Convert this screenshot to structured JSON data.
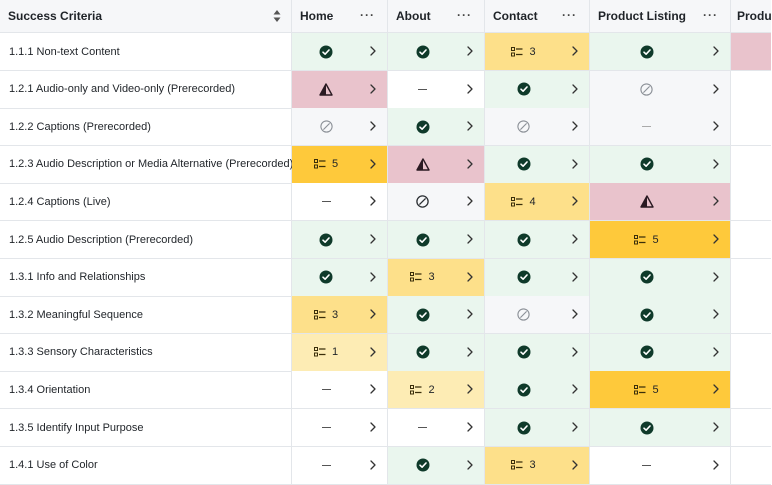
{
  "columns": [
    "Success Criteria",
    "Home",
    "About",
    "Contact",
    "Product Listing",
    "Produ"
  ],
  "header_menu": "···",
  "rows": [
    {
      "criterion": "1.1.1 Non-text Content",
      "cells": [
        {
          "s": "pass"
        },
        {
          "s": "pass"
        },
        {
          "s": "count",
          "n": "3",
          "t": "y1"
        },
        {
          "s": "pass"
        },
        {
          "s": "red"
        }
      ]
    },
    {
      "criterion": "1.2.1 Audio-only and Video-only (Prerecorded)",
      "cells": [
        {
          "s": "fail"
        },
        {
          "s": "dash"
        },
        {
          "s": "pass"
        },
        {
          "s": "na"
        },
        {
          "s": "none"
        }
      ]
    },
    {
      "criterion": "1.2.2 Captions (Prerecorded)",
      "cells": [
        {
          "s": "na"
        },
        {
          "s": "pass"
        },
        {
          "s": "na"
        },
        {
          "s": "dashl"
        },
        {
          "s": "none"
        }
      ]
    },
    {
      "criterion": "1.2.3 Audio Description or Media Alternative (Prerecorded)",
      "cells": [
        {
          "s": "count",
          "n": "5",
          "t": "y2"
        },
        {
          "s": "fail"
        },
        {
          "s": "pass"
        },
        {
          "s": "pass"
        },
        {
          "s": "none"
        }
      ]
    },
    {
      "criterion": "1.2.4 Captions (Live)",
      "cells": [
        {
          "s": "dash"
        },
        {
          "s": "na2"
        },
        {
          "s": "count",
          "n": "4",
          "t": "y1"
        },
        {
          "s": "fail"
        },
        {
          "s": "none"
        }
      ]
    },
    {
      "criterion": "1.2.5 Audio Description (Prerecorded)",
      "cells": [
        {
          "s": "pass"
        },
        {
          "s": "pass"
        },
        {
          "s": "pass"
        },
        {
          "s": "count",
          "n": "5",
          "t": "y2"
        },
        {
          "s": "none"
        }
      ]
    },
    {
      "criterion": "1.3.1 Info and Relationships",
      "cells": [
        {
          "s": "pass"
        },
        {
          "s": "count",
          "n": "3",
          "t": "y1"
        },
        {
          "s": "pass"
        },
        {
          "s": "pass"
        },
        {
          "s": "none"
        }
      ]
    },
    {
      "criterion": "1.3.2 Meaningful Sequence",
      "cells": [
        {
          "s": "count",
          "n": "3",
          "t": "y1"
        },
        {
          "s": "pass"
        },
        {
          "s": "na"
        },
        {
          "s": "pass"
        },
        {
          "s": "none"
        }
      ]
    },
    {
      "criterion": "1.3.3 Sensory Characteristics",
      "cells": [
        {
          "s": "count",
          "n": "1",
          "t": "y0"
        },
        {
          "s": "pass"
        },
        {
          "s": "pass"
        },
        {
          "s": "pass"
        },
        {
          "s": "none"
        }
      ]
    },
    {
      "criterion": "1.3.4 Orientation",
      "cells": [
        {
          "s": "dash"
        },
        {
          "s": "count",
          "n": "2",
          "t": "y0"
        },
        {
          "s": "pass"
        },
        {
          "s": "count",
          "n": "5",
          "t": "y2"
        },
        {
          "s": "none"
        }
      ]
    },
    {
      "criterion": "1.3.5 Identify Input Purpose",
      "cells": [
        {
          "s": "dash"
        },
        {
          "s": "dash"
        },
        {
          "s": "pass"
        },
        {
          "s": "pass"
        },
        {
          "s": "none"
        }
      ]
    },
    {
      "criterion": "1.4.1 Use of Color",
      "cells": [
        {
          "s": "dash"
        },
        {
          "s": "pass"
        },
        {
          "s": "count",
          "n": "3",
          "t": "y1"
        },
        {
          "s": "dash"
        },
        {
          "s": "none"
        }
      ]
    }
  ],
  "colors": {
    "pass_bg": "#eaf6ee",
    "fail_bg": "#e9c3cc",
    "red_bg": "#e9c3cc",
    "y0": "#fdecb4",
    "y1": "#fde08a",
    "y2": "#fec93b",
    "na_bg": "#f6f7f9",
    "dark": "#0f3a2a"
  }
}
